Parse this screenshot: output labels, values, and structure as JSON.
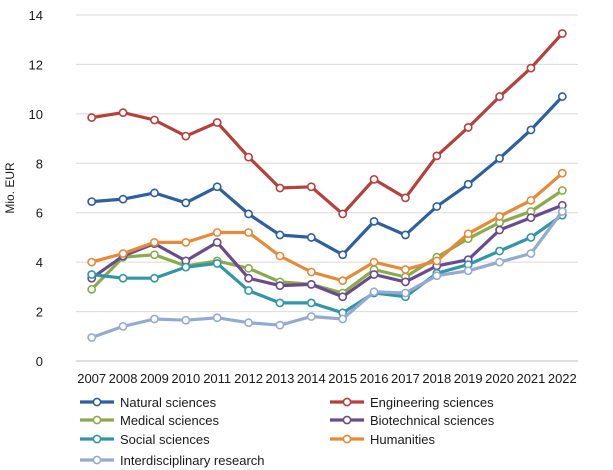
{
  "chart_data": {
    "type": "line",
    "title": "",
    "xlabel": "",
    "ylabel": "Mio. EUR",
    "ylim": [
      0,
      14
    ],
    "yticks": [
      0,
      2,
      4,
      6,
      8,
      10,
      12,
      14
    ],
    "grid": "horizontal",
    "legend_position": "bottom",
    "x": [
      "2007",
      "2008",
      "2009",
      "2010",
      "2011",
      "2012",
      "2013",
      "2014",
      "2015",
      "2016",
      "2017",
      "2018",
      "2019",
      "2020",
      "2021",
      "2022"
    ],
    "series": [
      {
        "name": "Natural sciences",
        "color": "#2e5f9e",
        "values": [
          6.45,
          6.55,
          6.8,
          6.4,
          7.05,
          5.95,
          5.1,
          5.0,
          4.3,
          5.65,
          5.1,
          6.25,
          7.15,
          8.2,
          9.35,
          10.7
        ]
      },
      {
        "name": "Engineering sciences",
        "color": "#b5403c",
        "values": [
          9.85,
          10.05,
          9.75,
          9.1,
          9.65,
          8.25,
          7.0,
          7.05,
          5.95,
          7.35,
          6.6,
          8.3,
          9.45,
          10.7,
          11.85,
          13.25
        ]
      },
      {
        "name": "Medical sciences",
        "color": "#8aab4c",
        "values": [
          2.9,
          4.2,
          4.3,
          3.85,
          4.05,
          3.75,
          3.2,
          3.1,
          2.75,
          3.7,
          3.4,
          4.2,
          4.95,
          5.6,
          6.05,
          6.9
        ]
      },
      {
        "name": "Biotechnical sciences",
        "color": "#6a4b8e",
        "values": [
          3.35,
          4.25,
          4.75,
          4.05,
          4.8,
          3.35,
          3.05,
          3.1,
          2.6,
          3.5,
          3.2,
          3.85,
          4.1,
          5.3,
          5.8,
          6.3
        ]
      },
      {
        "name": "Social sciences",
        "color": "#3295a8",
        "values": [
          3.5,
          3.35,
          3.35,
          3.8,
          3.95,
          2.85,
          2.35,
          2.35,
          1.95,
          2.75,
          2.6,
          3.55,
          3.9,
          4.45,
          5.0,
          5.9
        ]
      },
      {
        "name": "Humanities",
        "color": "#e48a39",
        "values": [
          4.0,
          4.35,
          4.8,
          4.8,
          5.2,
          5.2,
          4.25,
          3.6,
          3.25,
          4.0,
          3.7,
          4.05,
          5.15,
          5.85,
          6.5,
          7.6
        ]
      },
      {
        "name": "Interdisciplinary research",
        "color": "#94abcf",
        "values": [
          0.95,
          1.4,
          1.7,
          1.65,
          1.75,
          1.55,
          1.45,
          1.8,
          1.7,
          2.8,
          2.75,
          3.45,
          3.65,
          4.0,
          4.35,
          6.05
        ]
      }
    ]
  }
}
